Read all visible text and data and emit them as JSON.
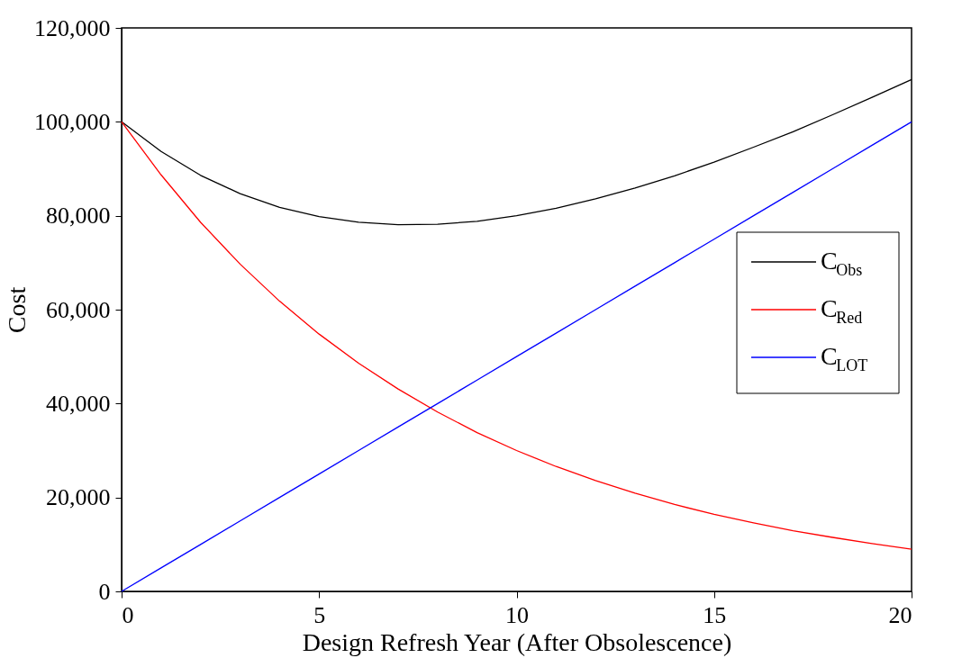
{
  "chart_data": {
    "type": "line",
    "xlabel": "Design Refresh Year (After Obsolescence)",
    "ylabel": "Cost",
    "x": [
      0,
      1,
      2,
      3,
      4,
      5,
      6,
      7,
      8,
      9,
      10,
      11,
      12,
      13,
      14,
      15,
      16,
      17,
      18,
      19,
      20
    ],
    "series": [
      {
        "name": "C$_{Obs}$",
        "color": "#000000",
        "values": [
          100000,
          93700,
          88600,
          84700,
          81800,
          79800,
          78600,
          78100,
          78200,
          78800,
          80000,
          81600,
          83600,
          85900,
          88500,
          91400,
          94600,
          97900,
          101500,
          105200,
          109000
        ]
      },
      {
        "name": "C$_{Red}$",
        "color": "#ff0000",
        "values": [
          100000,
          88700,
          78600,
          69700,
          61800,
          54800,
          48600,
          43100,
          38200,
          33800,
          30000,
          26600,
          23600,
          20900,
          18500,
          16400,
          14600,
          12900,
          11500,
          10200,
          9000
        ]
      },
      {
        "name": "C$_{LOT}$",
        "color": "#0000ff",
        "values": [
          0,
          5000,
          10000,
          15000,
          20000,
          25000,
          30000,
          35000,
          40000,
          45000,
          50000,
          55000,
          60000,
          65000,
          70000,
          75000,
          80000,
          85000,
          90000,
          95000,
          100000
        ]
      }
    ],
    "xlim": [
      0,
      20
    ],
    "xticks": [
      0,
      5,
      10,
      15,
      20
    ],
    "ylim": [
      0,
      120000
    ],
    "yticks": [
      0,
      {
        "value": 20000,
        "label": "20,000"
      },
      {
        "value": 40000,
        "label": "40,000"
      },
      {
        "value": 60000,
        "label": "60,000"
      },
      {
        "value": 80000,
        "label": "80,000"
      },
      {
        "value": 100000,
        "label": "100,000"
      },
      {
        "value": 120000,
        "label": "120,000"
      }
    ],
    "grid": false,
    "legend": "right",
    "marker": "none",
    "line_style": "solid"
  }
}
